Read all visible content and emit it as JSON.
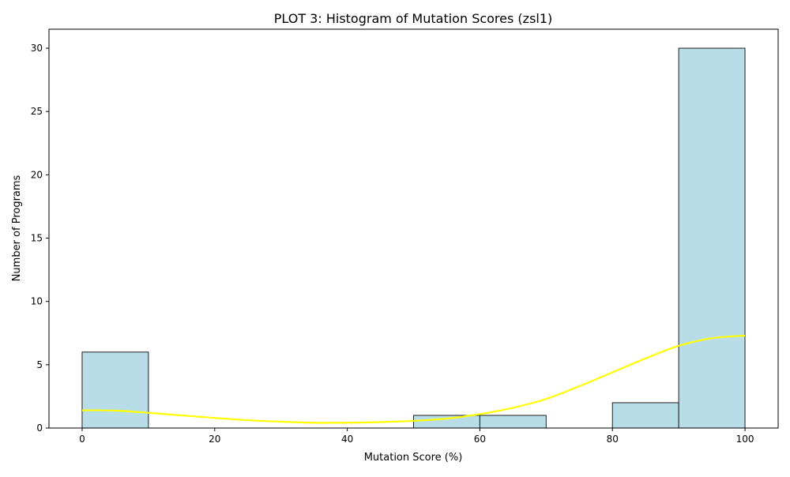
{
  "chart_data": {
    "type": "bar",
    "title": "PLOT 3: Histogram of Mutation Scores (zsl1)",
    "xlabel": "Mutation Score (%)",
    "ylabel": "Number of Programs",
    "bin_edges": [
      0,
      10,
      20,
      30,
      40,
      50,
      60,
      70,
      80,
      90,
      100
    ],
    "values": [
      6,
      0,
      0,
      0,
      0,
      1,
      1,
      0,
      2,
      30
    ],
    "xlim": [
      -5,
      105
    ],
    "ylim": [
      0,
      31.5
    ],
    "xticks": [
      0,
      20,
      40,
      60,
      80,
      100
    ],
    "yticks": [
      0,
      5,
      10,
      15,
      20,
      25,
      30
    ],
    "grid": false,
    "kde_curve": {
      "x": [
        0,
        5,
        10,
        15,
        20,
        25,
        30,
        35,
        40,
        45,
        50,
        55,
        60,
        65,
        70,
        75,
        80,
        85,
        90,
        95,
        100
      ],
      "y": [
        1.4,
        1.38,
        1.2,
        1.0,
        0.8,
        0.62,
        0.5,
        0.42,
        0.42,
        0.47,
        0.57,
        0.75,
        1.1,
        1.6,
        2.3,
        3.3,
        4.4,
        5.5,
        6.5,
        7.1,
        7.3
      ]
    },
    "colors": {
      "bar_fill": "#b8dde8",
      "bar_edge": "#1f1f1f",
      "kde_line": "#ffff00",
      "axis": "#000000"
    }
  }
}
